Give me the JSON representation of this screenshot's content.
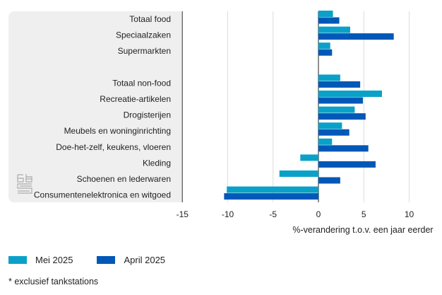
{
  "chart_data": {
    "type": "bar",
    "orientation": "horizontal",
    "title": "",
    "xlabel": "%-verandering t.o.v. een jaar eerder",
    "ylabel": "",
    "xlim": [
      -15,
      12.5
    ],
    "xticks": [
      -15,
      -10,
      -5,
      0,
      5,
      10
    ],
    "tick_labels": [
      "-15",
      "-10",
      "-5",
      "0",
      "5",
      "10"
    ],
    "grid": true,
    "legend_position": "bottom-left",
    "categories": [
      "Totaal food",
      "Speciaalzaken",
      "Supermarkten",
      "",
      "Totaal non-food",
      "Recreatie-artikelen",
      "Drogisterijen",
      "Meubels en woninginrichting",
      "Doe-het-zelf, keukens, vloeren",
      "Kleding",
      "Schoenen en lederwaren",
      "Consumentenelektronica en witgoed"
    ],
    "series": [
      {
        "name": "Mei 2025",
        "color": "#0aa1c9",
        "values": [
          1.6,
          3.5,
          1.3,
          null,
          2.4,
          7.0,
          4.0,
          2.6,
          1.5,
          -2.0,
          -4.3,
          -10.1
        ]
      },
      {
        "name": "April 2025",
        "color": "#0058b8",
        "values": [
          2.3,
          8.3,
          1.5,
          null,
          4.6,
          4.9,
          5.2,
          3.4,
          5.5,
          6.3,
          2.4,
          -10.4
        ]
      }
    ],
    "footnote": "* exclusief tankstations"
  },
  "logo": {
    "name": "cbs"
  }
}
